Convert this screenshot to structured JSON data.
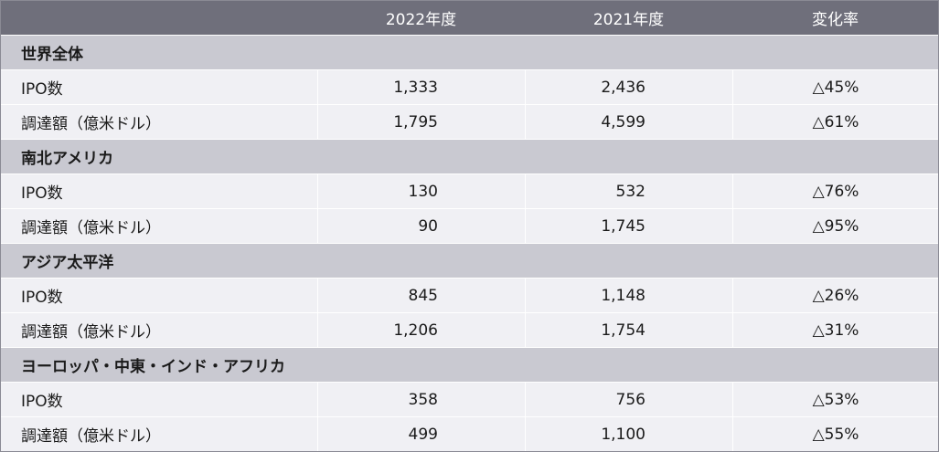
{
  "chart_data": {
    "type": "table",
    "columns": [
      "",
      "2022年度",
      "2021年度",
      "変化率"
    ],
    "sections": [
      {
        "name": "世界全体",
        "rows": [
          {
            "label": "IPO数",
            "y2022": "1,333",
            "y2021": "2,436",
            "change": "△45%"
          },
          {
            "label": "調達額（億米ドル）",
            "y2022": "1,795",
            "y2021": "4,599",
            "change": "△61%"
          }
        ]
      },
      {
        "name": "南北アメリカ",
        "rows": [
          {
            "label": "IPO数",
            "y2022": "130",
            "y2021": "532",
            "change": "△76%"
          },
          {
            "label": "調達額（億米ドル）",
            "y2022": "90",
            "y2021": "1,745",
            "change": "△95%"
          }
        ]
      },
      {
        "name": "アジア太平洋",
        "rows": [
          {
            "label": "IPO数",
            "y2022": "845",
            "y2021": "1,148",
            "change": "△26%"
          },
          {
            "label": "調達額（億米ドル）",
            "y2022": "1,206",
            "y2021": "1,754",
            "change": "△31%"
          }
        ]
      },
      {
        "name": "ヨーロッパ・中東・インド・アフリカ",
        "rows": [
          {
            "label": "IPO数",
            "y2022": "358",
            "y2021": "756",
            "change": "△53%"
          },
          {
            "label": "調達額（億米ドル）",
            "y2022": "499",
            "y2021": "1,100",
            "change": "△55%"
          }
        ]
      }
    ]
  },
  "colors": {
    "header_bg": "#6f6f7b",
    "section_bg": "#c9c9d1",
    "row_bg": "#f0f0f4"
  }
}
